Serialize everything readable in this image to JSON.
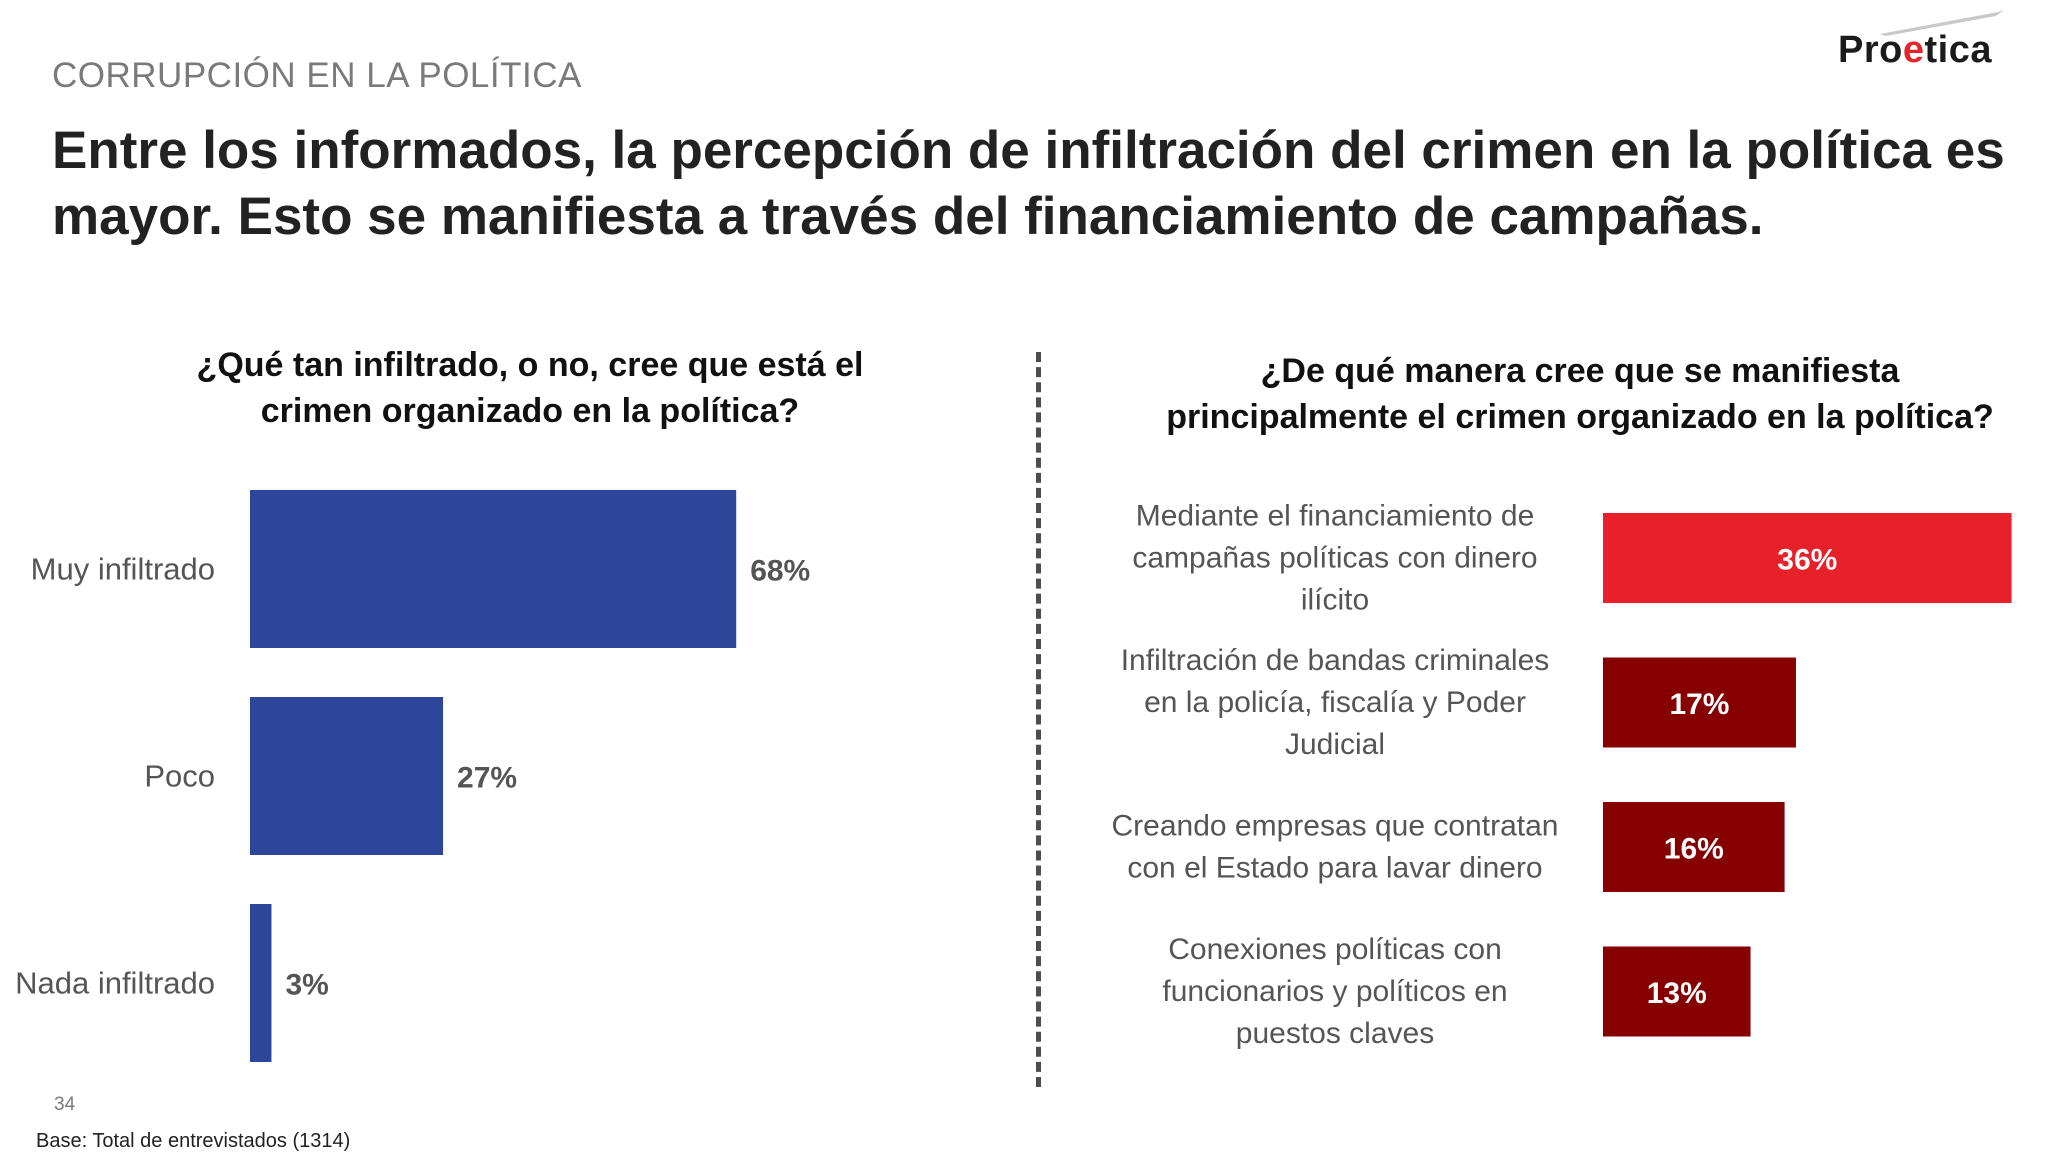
{
  "section_label": "CORRUPCIÓN EN LA POLÍTICA",
  "logo": {
    "text_start": "Pro",
    "text_accent": "e",
    "text_end": "tica"
  },
  "headline": {
    "line1": "Entre los informados, la percepción de infiltración del crimen en la política es",
    "line2": "mayor. Esto se manifiesta a través del financiamiento de campañas."
  },
  "colors": {
    "left_bar": "#2e4699",
    "right_bar_top": "#e8202a",
    "right_bar_other": "#860000",
    "divider": "#4d4d4d"
  },
  "chart_data": [
    {
      "type": "bar",
      "orientation": "horizontal",
      "title_lines": [
        "¿Qué tan infiltrado, o no, cree que está el",
        "crimen organizado en la política?"
      ],
      "categories": [
        "Muy infiltrado",
        "Poco",
        "Nada infiltrado"
      ],
      "values": [
        68,
        27,
        3
      ],
      "value_labels": [
        "68%",
        "27%",
        "3%"
      ],
      "value_label_position": "outside-end",
      "axis_visible": false,
      "grid": false
    },
    {
      "type": "bar",
      "orientation": "horizontal",
      "title_lines": [
        "¿De qué manera cree que se manifiesta",
        "principalmente el crimen organizado en la política?"
      ],
      "categories": [
        [
          "Mediante el financiamiento de",
          "campañas políticas con dinero",
          "ilícito"
        ],
        [
          "Infiltración de bandas criminales",
          "en la policía, fiscalía y Poder",
          "Judicial"
        ],
        [
          "Creando empresas que contratan",
          "con el Estado para lavar dinero"
        ],
        [
          "Conexiones políticas con",
          "funcionarios y políticos en",
          "puestos claves"
        ]
      ],
      "values": [
        36,
        17,
        16,
        13
      ],
      "value_labels": [
        "36%",
        "17%",
        "16%",
        "13%"
      ],
      "value_label_position": "inside-center",
      "axis_visible": false,
      "grid": false
    }
  ],
  "footer": {
    "page_number": "34",
    "base": "Base: Total de entrevistados (1314)"
  }
}
